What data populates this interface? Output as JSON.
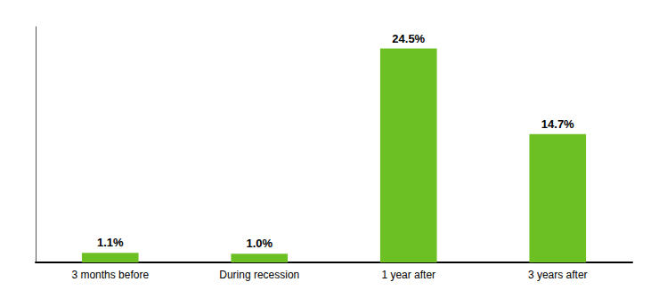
{
  "chart_data": {
    "type": "bar",
    "categories": [
      "3 months before",
      "During recession",
      "1 year after",
      "3 years after"
    ],
    "values": [
      1.1,
      1.0,
      24.5,
      14.7
    ],
    "value_labels": [
      "1.1%",
      "1.0%",
      "24.5%",
      "14.7%"
    ],
    "data_labels": true,
    "color": "#6cc024",
    "ylim": [
      0,
      27
    ],
    "tick_labels": "x",
    "grid": false
  }
}
